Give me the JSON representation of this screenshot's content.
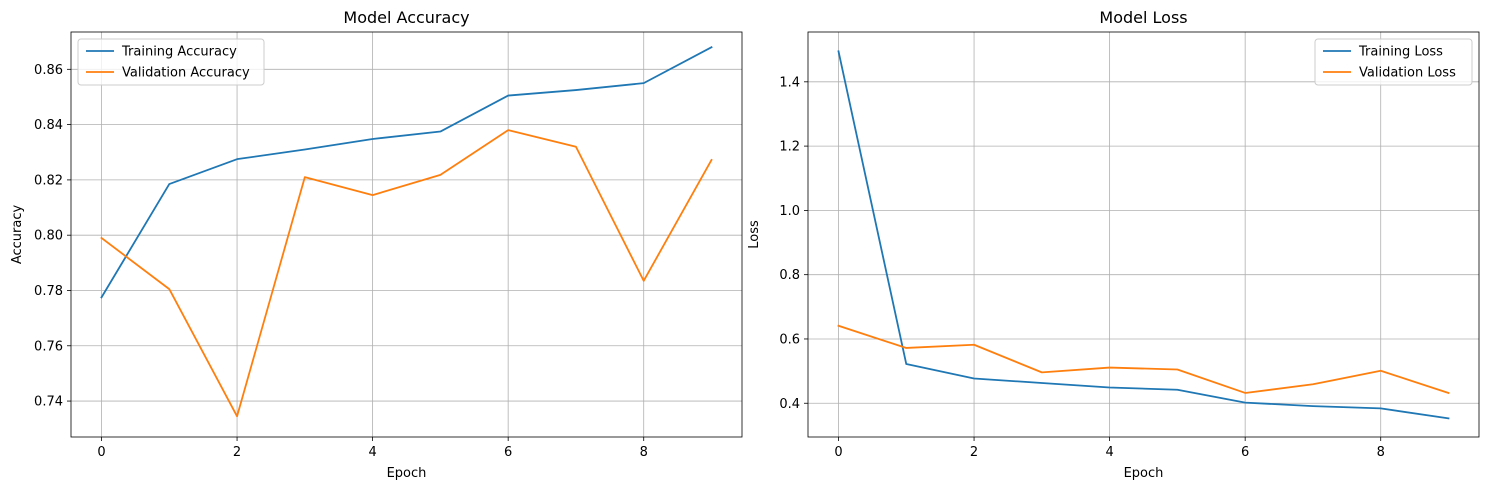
{
  "chart_data": [
    {
      "type": "line",
      "title": "Model Accuracy",
      "xlabel": "Epoch",
      "ylabel": "Accuracy",
      "x": [
        0,
        1,
        2,
        3,
        4,
        5,
        6,
        7,
        8,
        9
      ],
      "xlim": [
        -0.45,
        9.45
      ],
      "ylim": [
        0.727,
        0.8735
      ],
      "xticks": [
        0,
        2,
        4,
        6,
        8
      ],
      "yticks": [
        0.74,
        0.76,
        0.78,
        0.8,
        0.82,
        0.84,
        0.86
      ],
      "ytick_labels": [
        "0.74",
        "0.76",
        "0.78",
        "0.80",
        "0.82",
        "0.84",
        "0.86"
      ],
      "grid": true,
      "legend_position": "upper-left",
      "series": [
        {
          "name": "Training Accuracy",
          "color": "#1f77b4",
          "values": [
            0.7775,
            0.8185,
            0.8275,
            0.831,
            0.8348,
            0.8375,
            0.8505,
            0.8525,
            0.855,
            0.868
          ]
        },
        {
          "name": "Validation Accuracy",
          "color": "#ff7f0e",
          "values": [
            0.799,
            0.7805,
            0.7345,
            0.821,
            0.8145,
            0.8218,
            0.838,
            0.832,
            0.7835,
            0.8272
          ]
        }
      ]
    },
    {
      "type": "line",
      "title": "Model Loss",
      "xlabel": "Epoch",
      "ylabel": "Loss",
      "x": [
        0,
        1,
        2,
        3,
        4,
        5,
        6,
        7,
        8,
        9
      ],
      "xlim": [
        -0.45,
        9.45
      ],
      "ylim": [
        0.295,
        1.555
      ],
      "xticks": [
        0,
        2,
        4,
        6,
        8
      ],
      "yticks": [
        0.4,
        0.6,
        0.8,
        1.0,
        1.2,
        1.4
      ],
      "ytick_labels": [
        "0.4",
        "0.6",
        "0.8",
        "1.0",
        "1.2",
        "1.4"
      ],
      "grid": true,
      "legend_position": "upper-right",
      "series": [
        {
          "name": "Training Loss",
          "color": "#1f77b4",
          "values": [
            1.495,
            0.522,
            0.477,
            0.463,
            0.449,
            0.442,
            0.402,
            0.391,
            0.384,
            0.353
          ]
        },
        {
          "name": "Validation Loss",
          "color": "#ff7f0e",
          "values": [
            0.641,
            0.572,
            0.582,
            0.496,
            0.511,
            0.505,
            0.432,
            0.459,
            0.501,
            0.432
          ]
        }
      ]
    }
  ]
}
